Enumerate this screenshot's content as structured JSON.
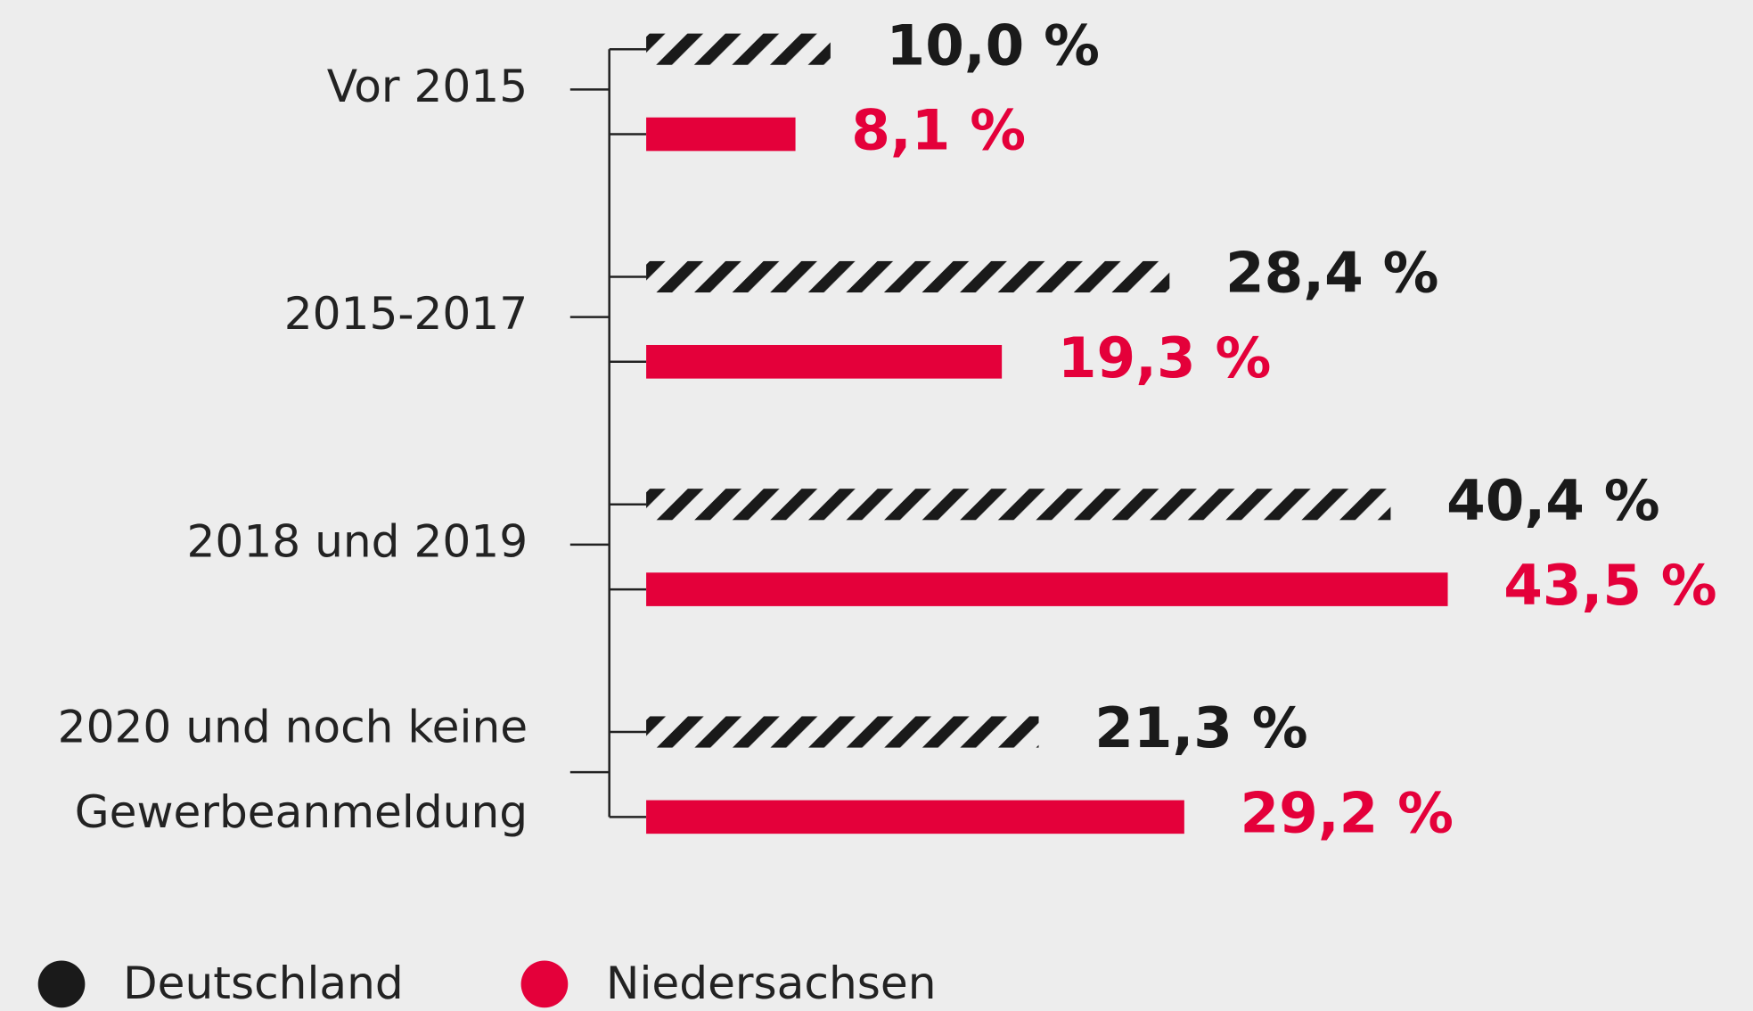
{
  "chart_data": {
    "type": "bar",
    "orientation": "horizontal",
    "categories": [
      "Vor 2015",
      "2015-2017",
      "2018 und 2019",
      "2020 und noch keine Gewerbeanmeldung"
    ],
    "series": [
      {
        "name": "Deutschland",
        "color": "#1a1a1a",
        "pattern": "hatch",
        "values": [
          10.0,
          28.4,
          40.4,
          21.3
        ],
        "value_labels": [
          "10,0 %",
          "28,4 %",
          "40,4 %",
          "21,3 %"
        ]
      },
      {
        "name": "Niedersachsen",
        "color": "#e4003a",
        "values": [
          8.1,
          19.3,
          43.5,
          29.2
        ],
        "value_labels": [
          "8,1 %",
          "19,3 %",
          "43,5 %",
          "29,2 %"
        ]
      }
    ],
    "legend": "bottom-left"
  }
}
